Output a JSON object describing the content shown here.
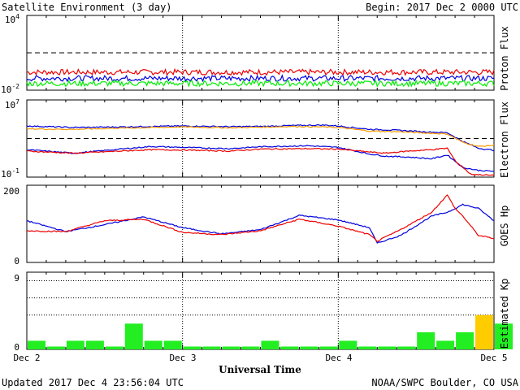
{
  "header": {
    "title": "Satellite Environment (3 day)",
    "begin": "Begin:  2017 Dec 2 0000 UTC"
  },
  "footer": {
    "updated": "Updated 2017 Dec  4 23:56:04 UTC",
    "credit": "NOAA/SWPC Boulder, CO USA"
  },
  "x_axis": {
    "title": "Universal Time",
    "ticks": [
      "Dec 2",
      "Dec 3",
      "Dec 4",
      "Dec 5"
    ]
  },
  "colors": {
    "red": "#ee0000",
    "blue": "#0000dd",
    "green": "#00ee00",
    "orange": "#ff9900",
    "kp_green": "#22ee22",
    "kp_yellow": "#ffcc00"
  },
  "chart_data": [
    {
      "type": "line",
      "name": "proton_flux",
      "ylabel": "Proton Flux",
      "yscale": "log",
      "ylim": [
        0.01,
        10000
      ],
      "ytick_labels": {
        "top": "10",
        "top_exp": "4",
        "bottom": "10",
        "bottom_exp": "-2"
      },
      "threshold": 10,
      "x_days": [
        0,
        3
      ],
      "series": [
        {
          "color": "red",
          "x": [
            0,
            3
          ],
          "y": [
            0.28,
            0.28
          ]
        },
        {
          "color": "blue",
          "x": [
            0,
            3
          ],
          "y": [
            0.09,
            0.09
          ]
        },
        {
          "color": "green",
          "x": [
            0,
            3
          ],
          "y": [
            0.035,
            0.035
          ]
        }
      ]
    },
    {
      "type": "line",
      "name": "electron_flux",
      "ylabel": "Electron Flux",
      "yscale": "log",
      "ylim": [
        0.1,
        10000000
      ],
      "ytick_labels": {
        "top": "10",
        "top_exp": "7",
        "bottom": "10",
        "bottom_exp": "-1"
      },
      "threshold": 1000,
      "series": [
        {
          "color": "blue",
          "x": [
            0,
            0.3,
            0.6,
            1.0,
            1.3,
            1.5,
            1.7,
            1.9,
            2.0,
            2.2,
            2.4,
            2.55,
            2.7,
            2.8,
            2.9,
            3.0
          ],
          "y": [
            20000,
            14000,
            16000,
            20000,
            17000,
            18000,
            22000,
            25000,
            20000,
            9000,
            7000,
            5000,
            4000,
            500,
            100,
            60
          ]
        },
        {
          "color": "orange",
          "x": [
            0,
            0.3,
            0.6,
            1.0,
            1.3,
            1.5,
            1.7,
            1.9,
            2.0,
            2.2,
            2.4,
            2.55,
            2.7,
            2.8,
            2.9,
            3.0
          ],
          "y": [
            10000,
            9000,
            12000,
            16000,
            13000,
            15000,
            18000,
            16000,
            14000,
            6000,
            5000,
            3800,
            3000,
            400,
            150,
            200
          ]
        },
        {
          "color": "blue",
          "x": [
            0,
            0.3,
            0.6,
            0.8,
            1.0,
            1.3,
            1.5,
            1.8,
            2.0,
            2.2,
            2.3,
            2.45,
            2.6,
            2.7,
            2.8,
            2.9,
            3.0
          ],
          "y": [
            70,
            30,
            80,
            150,
            120,
            90,
            140,
            180,
            120,
            25,
            15,
            12,
            8,
            20,
            1,
            0.5,
            0.4
          ]
        },
        {
          "color": "red",
          "x": [
            0,
            0.3,
            0.6,
            0.8,
            1.0,
            1.3,
            1.5,
            1.8,
            2.0,
            2.2,
            2.3,
            2.45,
            2.6,
            2.7,
            2.75,
            2.85,
            3.0
          ],
          "y": [
            50,
            30,
            50,
            70,
            65,
            50,
            80,
            90,
            80,
            40,
            30,
            50,
            70,
            100,
            5,
            0.2,
            0.15
          ]
        }
      ]
    },
    {
      "type": "line",
      "name": "goes_hp",
      "ylabel": "GOES Hp",
      "ylim": [
        0,
        200
      ],
      "ytick_labels": [
        "0",
        "200"
      ],
      "series": [
        {
          "color": "blue",
          "x": [
            0,
            0.25,
            0.5,
            0.75,
            1.0,
            1.25,
            1.5,
            1.75,
            2.0,
            2.2,
            2.25,
            2.4,
            2.6,
            2.7,
            2.8,
            2.9,
            3.0
          ],
          "y": [
            108,
            80,
            98,
            118,
            90,
            74,
            85,
            122,
            110,
            90,
            50,
            70,
            120,
            130,
            150,
            140,
            108
          ]
        },
        {
          "color": "red",
          "x": [
            0,
            0.25,
            0.5,
            0.75,
            1.0,
            1.25,
            1.5,
            1.75,
            2.0,
            2.2,
            2.25,
            2.4,
            2.6,
            2.7,
            2.75,
            2.8,
            2.9,
            3.0
          ],
          "y": [
            82,
            80,
            108,
            112,
            78,
            72,
            82,
            112,
            94,
            72,
            55,
            85,
            130,
            175,
            140,
            120,
            70,
            62
          ]
        }
      ]
    },
    {
      "type": "bar",
      "name": "estimated_kp",
      "ylabel": "Estimated Kp",
      "ylim": [
        0,
        9
      ],
      "ytick_labels": [
        "0",
        "9"
      ],
      "dotted_levels": [
        4,
        6,
        8,
        9
      ],
      "values": [
        1,
        0.33,
        1,
        1,
        0.33,
        3,
        1,
        1,
        0.33,
        0.33,
        0.33,
        0.33,
        1,
        0.33,
        0.33,
        0.33,
        1,
        0.33,
        0.33,
        0.33,
        2,
        1,
        2,
        4,
        3
      ],
      "yellow_from": 4
    }
  ]
}
